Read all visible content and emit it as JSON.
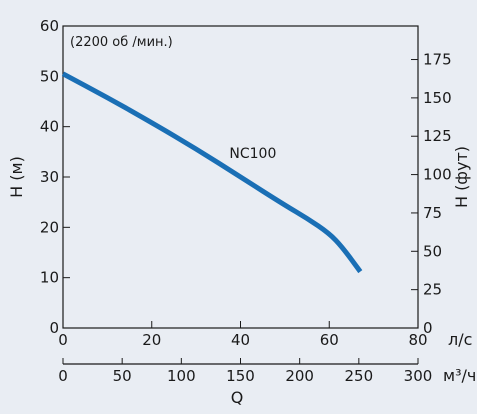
{
  "chart_data": {
    "type": "line",
    "note": "(2200 об /мин.)",
    "series": [
      {
        "label": "NC100",
        "color": "#1a6fb5",
        "x": [
          0,
          10,
          20,
          30,
          40,
          50,
          55,
          60,
          63,
          67
        ],
        "y": [
          50.5,
          45.8,
          40.8,
          35.6,
          30.0,
          24.4,
          21.8,
          18.8,
          16.0,
          11.2
        ]
      }
    ],
    "axes": {
      "left": {
        "label": "H (м)",
        "min": 0,
        "max": 60,
        "ticks": [
          "0",
          "10",
          "20",
          "30",
          "40",
          "50",
          "60"
        ]
      },
      "right": {
        "label": "H (фут)",
        "min": 0,
        "max": 196.85,
        "ticks": [
          "0",
          "25",
          "50",
          "75",
          "100",
          "125",
          "150",
          "175"
        ]
      },
      "bottom_top": {
        "unit": "л/с",
        "min": 0,
        "max": 80,
        "ticks": [
          "0",
          "20",
          "40",
          "60",
          "80"
        ]
      },
      "bottom_lower": {
        "unit": "м³/ч",
        "min": 0,
        "max": 300,
        "ticks": [
          "0",
          "50",
          "100",
          "150",
          "200",
          "250",
          "300"
        ]
      },
      "xlabel": "Q"
    }
  }
}
